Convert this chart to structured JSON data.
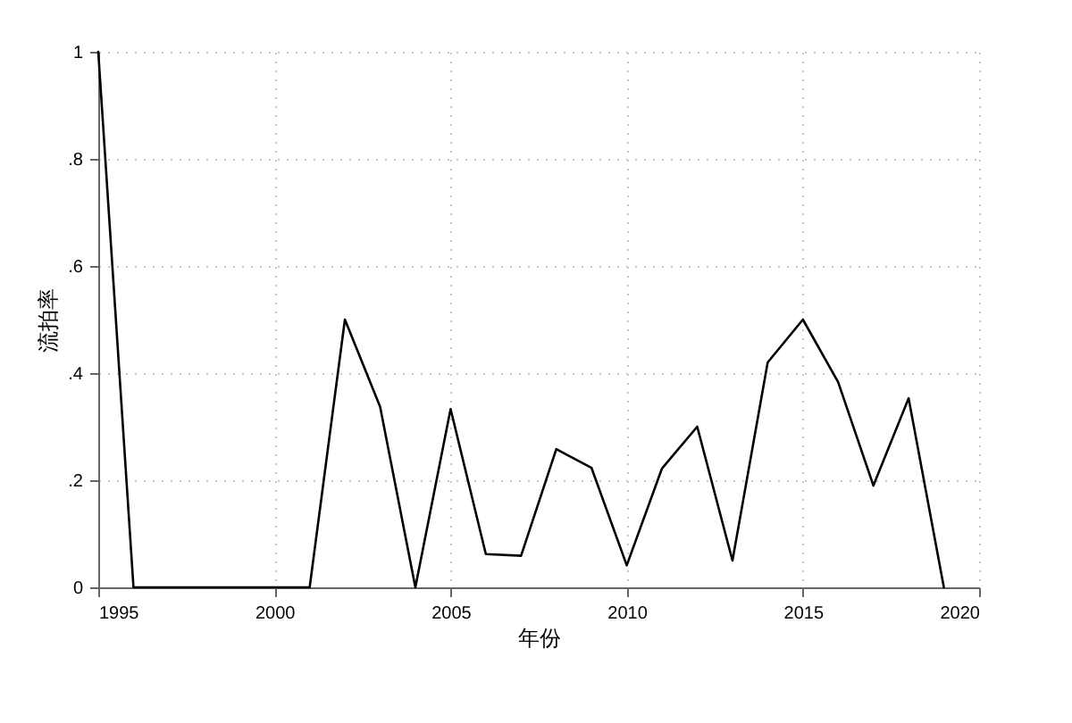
{
  "chart_data": {
    "type": "line",
    "xlabel": "年份",
    "ylabel": "流拍率",
    "x": [
      1995,
      1996,
      1997,
      1998,
      1999,
      2000,
      2001,
      2002,
      2003,
      2004,
      2005,
      2006,
      2007,
      2008,
      2009,
      2010,
      2011,
      2012,
      2013,
      2014,
      2015,
      2016,
      2017,
      2018,
      2019
    ],
    "series": [
      {
        "color": "#000000",
        "values": [
          1,
          0,
          0,
          0,
          0,
          0,
          0,
          0.5,
          0.337,
          0,
          0.333,
          0.062,
          0.059,
          0.258,
          0.223,
          0.041,
          0.222,
          0.3,
          0.05,
          0.42,
          0.5,
          0.383,
          0.19,
          0.353,
          0
        ]
      }
    ],
    "xlim": [
      1995,
      2020
    ],
    "xticks": [
      1995,
      2000,
      2005,
      2010,
      2015,
      2020
    ],
    "ylim": [
      0,
      1
    ],
    "yticks": [
      0,
      {
        "value": 0.2,
        "label": ".2"
      },
      {
        "value": 0.4,
        "label": ".4"
      },
      {
        "value": 0.6,
        "label": ".6"
      },
      {
        "value": 0.8,
        "label": ".8"
      },
      1
    ],
    "grid": true,
    "legend": false,
    "marker": "none",
    "line_style": "solid"
  }
}
